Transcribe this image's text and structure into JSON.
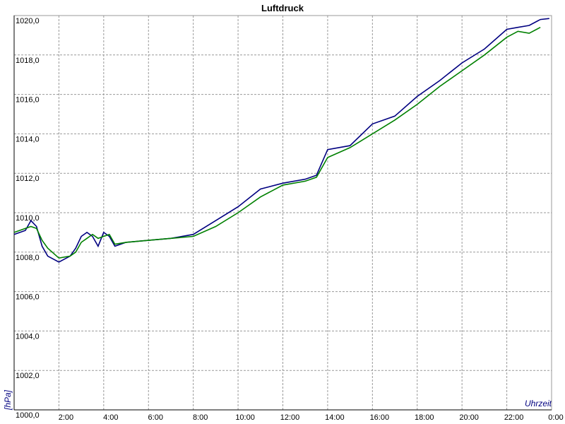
{
  "chart_data": {
    "type": "line",
    "title": "Luftdruck",
    "y_label": "[hPa]",
    "x_label": "Uhrzeit",
    "x": [
      0,
      0.5,
      0.75,
      1,
      1.25,
      1.5,
      2,
      2.5,
      2.75,
      3,
      3.25,
      3.5,
      3.75,
      4,
      4.25,
      4.5,
      5,
      6,
      7,
      8,
      9,
      10,
      11,
      12,
      13,
      13.5,
      14,
      15,
      16,
      17,
      18,
      19,
      20,
      21,
      22,
      22.5,
      23,
      23.5,
      23.9
    ],
    "series": [
      {
        "color": "#000080",
        "values": [
          1008.9,
          1009.1,
          1009.6,
          1009.3,
          1008.3,
          1007.8,
          1007.5,
          1007.8,
          1008.2,
          1008.8,
          1009.0,
          1008.8,
          1008.3,
          1009.0,
          1008.8,
          1008.3,
          1008.5,
          1008.6,
          1008.7,
          1008.9,
          1009.6,
          1010.3,
          1011.2,
          1011.5,
          1011.7,
          1011.9,
          1013.2,
          1013.4,
          1014.5,
          1014.9,
          1015.9,
          1016.7,
          1017.6,
          1018.3,
          1019.3,
          1019.4,
          1019.5,
          1019.8,
          1019.85
        ]
      },
      {
        "color": "#008000",
        "values": [
          1009.0,
          1009.2,
          1009.3,
          1009.2,
          1008.6,
          1008.2,
          1007.7,
          1007.8,
          1008.0,
          1008.5,
          1008.7,
          1008.9,
          1008.7,
          1008.8,
          1008.9,
          1008.4,
          1008.5,
          1008.6,
          1008.7,
          1008.8,
          1009.3,
          1010.0,
          1010.8,
          1011.4,
          1011.6,
          1011.8,
          1012.8,
          1013.3,
          1014.0,
          1014.7,
          1015.5,
          1016.4,
          1017.2,
          1018.0,
          1018.9,
          1019.2,
          1019.1,
          1019.4,
          null
        ]
      }
    ],
    "xlim": [
      0,
      24
    ],
    "xticks": [
      {
        "value": 2,
        "label": "2:00"
      },
      {
        "value": 4,
        "label": "4:00"
      },
      {
        "value": 6,
        "label": "6:00"
      },
      {
        "value": 8,
        "label": "8:00"
      },
      {
        "value": 10,
        "label": "10:00"
      },
      {
        "value": 12,
        "label": "12:00"
      },
      {
        "value": 14,
        "label": "14:00"
      },
      {
        "value": 16,
        "label": "16:00"
      },
      {
        "value": 18,
        "label": "18:00"
      },
      {
        "value": 20,
        "label": "20:00"
      },
      {
        "value": 22,
        "label": "22:00"
      },
      {
        "value": 24,
        "label": "0:00"
      }
    ],
    "ylim": [
      1000,
      1020
    ],
    "yticks": [
      {
        "value": 1000,
        "label": "1000,0"
      },
      {
        "value": 1002,
        "label": "1002,0"
      },
      {
        "value": 1004,
        "label": "1004,0"
      },
      {
        "value": 1006,
        "label": "1006,0"
      },
      {
        "value": 1008,
        "label": "1008,0"
      },
      {
        "value": 1010,
        "label": "1010,0"
      },
      {
        "value": 1012,
        "label": "1012,0"
      },
      {
        "value": 1014,
        "label": "1014,0"
      },
      {
        "value": 1016,
        "label": "1016,0"
      },
      {
        "value": 1018,
        "label": "1018,0"
      },
      {
        "value": 1020,
        "label": "1020,0"
      }
    ],
    "grid": true
  }
}
